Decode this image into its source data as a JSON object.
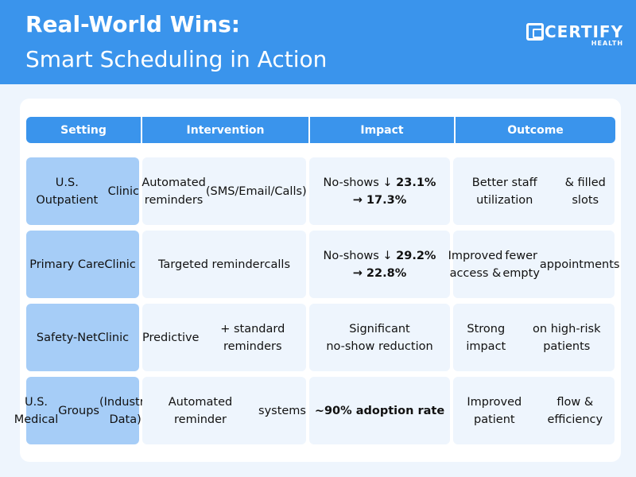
{
  "header": {
    "title_line1": "Real-World Wins:",
    "title_line2": "Smart Scheduling in Action",
    "logo_text": "CERTIFY",
    "logo_sub": "HEALTH",
    "color": "#3a94ec"
  },
  "table": {
    "columns": [
      "Setting",
      "Intervention",
      "Impact",
      "Outcome"
    ],
    "rows": [
      {
        "setting": [
          "U.S. Outpatient",
          "Clinic"
        ],
        "intervention": [
          "Automated reminders",
          "(SMS/Email/Calls)"
        ],
        "impact_pre": "No-shows ↓ ",
        "impact_bold1": "23.1%",
        "impact_bold2": "→ 17.3%",
        "outcome": [
          "Better staff utilization",
          "& filled slots"
        ]
      },
      {
        "setting": [
          "Primary Care",
          "Clinic"
        ],
        "intervention": [
          "Targeted reminder",
          "calls"
        ],
        "impact_pre": "No-shows ↓ ",
        "impact_bold1": "29.2%",
        "impact_bold2": "→ 22.8%",
        "outcome": [
          "Improved access &",
          "fewer empty",
          "appointments"
        ]
      },
      {
        "setting": [
          "Safety-Net",
          "Clinic"
        ],
        "intervention": [
          "Predictive",
          "+ standard reminders"
        ],
        "impact_text": [
          "Significant",
          "no-show reduction"
        ],
        "outcome": [
          "Strong impact",
          "on high-risk patients"
        ]
      },
      {
        "setting": [
          "U.S. Medical",
          "Groups",
          "(Industry Data)"
        ],
        "intervention": [
          "Automated reminder",
          "systems"
        ],
        "impact_bold": "~90% adoption rate",
        "outcome": [
          "Improved patient",
          "flow & efficiency"
        ]
      }
    ]
  }
}
